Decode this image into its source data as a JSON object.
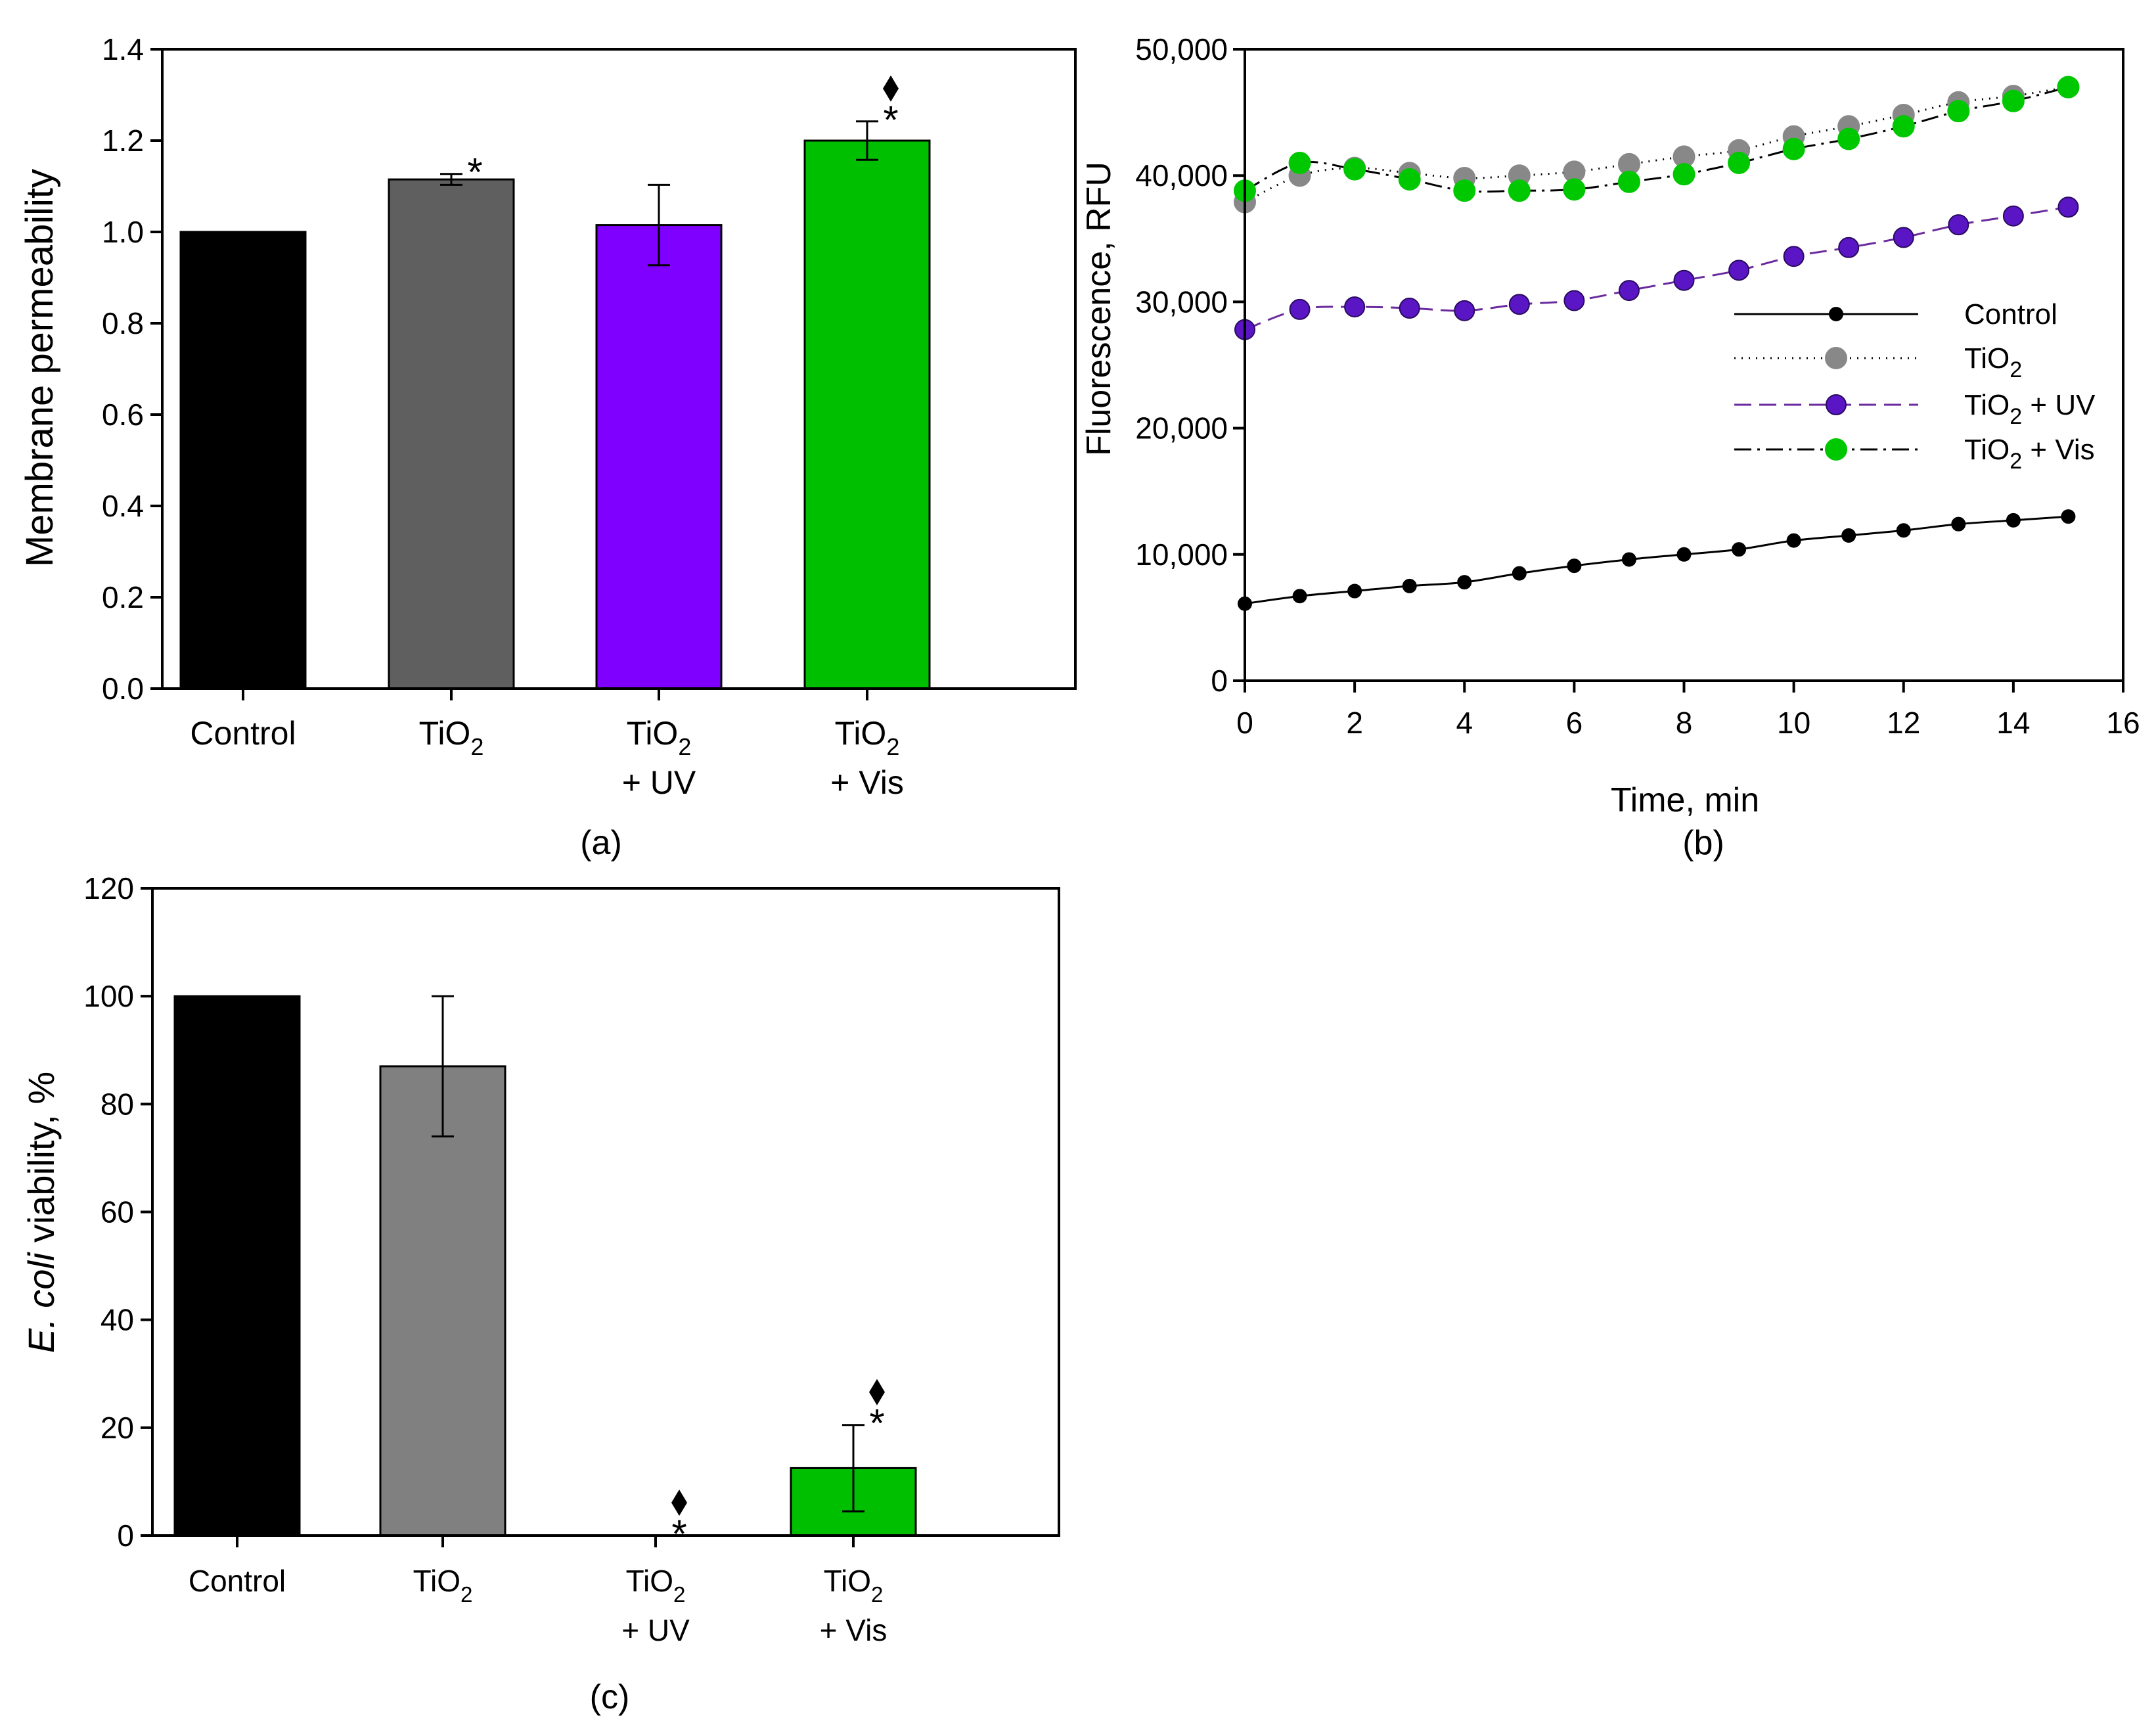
{
  "chart_data": [
    {
      "type": "bar",
      "panel_label": "(a)",
      "ylabel": "Membrane permeability",
      "ylim": [
        0,
        1.4
      ],
      "yticks": [
        "0.0",
        "0.2",
        "0.4",
        "0.6",
        "0.8",
        "1.0",
        "1.2",
        "1.4"
      ],
      "categories": [
        {
          "line1": "Control",
          "line1_sub": "",
          "line2": ""
        },
        {
          "line1": "TiO",
          "line1_sub": "2",
          "line2": ""
        },
        {
          "line1": "TiO",
          "line1_sub": "2",
          "line2": "+ UV"
        },
        {
          "line1": "TiO",
          "line1_sub": "2",
          "line2": "+ Vis"
        }
      ],
      "values": [
        1.0,
        1.115,
        1.015,
        1.2
      ],
      "errors": [
        0,
        0.012,
        0.088,
        0.042
      ],
      "colors": [
        "#000000",
        "#5f5f5f",
        "#7f00ff",
        "#00bf00"
      ],
      "annotations": [
        {
          "bar": 1,
          "diamond": false,
          "text": "*"
        },
        {
          "bar": 3,
          "diamond": true,
          "text": "*"
        }
      ]
    },
    {
      "type": "line",
      "panel_label": "(b)",
      "ylabel": "Fluorescence, RFU",
      "xlabel": "Time, min",
      "xlim": [
        0,
        16
      ],
      "ylim": [
        0,
        50000
      ],
      "xticks": [
        "0",
        "2",
        "4",
        "6",
        "8",
        "10",
        "12",
        "14",
        "16"
      ],
      "yticks": [
        "0",
        "10,000",
        "20,000",
        "30,000",
        "40,000",
        "50,000"
      ],
      "x": [
        0,
        1,
        2,
        3,
        4,
        5,
        6,
        7,
        8,
        9,
        10,
        11,
        12,
        13,
        14,
        15
      ],
      "legend_position": "right",
      "series": [
        {
          "name": "Control",
          "name_sub": "",
          "name_suffix": "",
          "color": "#000000",
          "line_color": "#000000",
          "dash": "",
          "marker_r": 10,
          "values": [
            6100,
            6700,
            7100,
            7500,
            7800,
            8500,
            9100,
            9600,
            10000,
            10400,
            11100,
            11500,
            11900,
            12400,
            12700,
            13000
          ]
        },
        {
          "name": "TiO",
          "name_sub": "2",
          "name_suffix": "",
          "color": "#888888",
          "line_color": "#000000",
          "dash": "2,9",
          "marker_r": 16,
          "values": [
            37900,
            40000,
            40600,
            40200,
            39800,
            40000,
            40300,
            40900,
            41500,
            42000,
            43100,
            43900,
            44800,
            45800,
            46300,
            47000
          ]
        },
        {
          "name": "TiO",
          "name_sub": "2",
          "name_suffix": " + UV",
          "color": "#5a16c4",
          "line_color": "#6a2a9e",
          "dash": "26,12",
          "marker_r": 15,
          "values": [
            27800,
            29400,
            29600,
            29500,
            29300,
            29800,
            30100,
            30900,
            31700,
            32500,
            33600,
            34300,
            35100,
            36100,
            36800,
            37500
          ]
        },
        {
          "name": "TiO",
          "name_sub": "2",
          "name_suffix": " + Vis",
          "color": "#00c800",
          "line_color": "#000000",
          "dash": "26,9,4,9",
          "marker_r": 16,
          "values": [
            38800,
            41000,
            40500,
            39700,
            38800,
            38800,
            38900,
            39500,
            40100,
            41000,
            42100,
            42900,
            43900,
            45100,
            45900,
            47000
          ]
        }
      ]
    },
    {
      "type": "bar",
      "panel_label": "(c)",
      "ylabel_italic": "E. coli",
      "ylabel_rest": " viability, %",
      "ylim": [
        0,
        120
      ],
      "yticks": [
        "0",
        "20",
        "40",
        "60",
        "80",
        "100",
        "120"
      ],
      "categories": [
        {
          "line1": "Control",
          "line1_sub": "",
          "line2": ""
        },
        {
          "line1": "TiO",
          "line1_sub": "2",
          "line2": ""
        },
        {
          "line1": "TiO",
          "line1_sub": "2",
          "line2": "+ UV"
        },
        {
          "line1": "TiO",
          "line1_sub": "2",
          "line2": "+ Vis"
        }
      ],
      "values": [
        100,
        87,
        0,
        12.5
      ],
      "errors": [
        0,
        13,
        0,
        8
      ],
      "colors": [
        "#000000",
        "#808080",
        "#00bf00",
        "#00bf00"
      ],
      "annotations": [
        {
          "bar": 2,
          "diamond": true,
          "text": "*"
        },
        {
          "bar": 3,
          "diamond": true,
          "text": "*"
        }
      ]
    }
  ]
}
